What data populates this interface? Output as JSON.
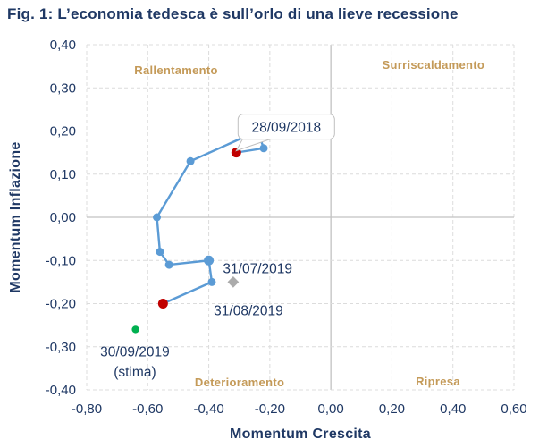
{
  "title": "Fig. 1: L’economia tedesca è sull’orlo di una lieve recessione",
  "style": {
    "navy": "#1F3864",
    "line_blue": "#5B9BD5",
    "red": "#C00000",
    "green": "#00B050",
    "diamond_gray": "#ABABAB",
    "gridline": "#DCDCDC",
    "axis_line": "#C2C2C2",
    "quadrant": "#C49A58",
    "callout_border": "#BFBFBF",
    "callout_fill": "#FFFFFF"
  },
  "chart_data": {
    "type": "scatter",
    "title": "Fig. 1: L’economia tedesca è sull’orlo di una lieve recessione",
    "xlabel": "Momentum Crescita",
    "ylabel": "Momentum Inflazione",
    "xlim": [
      -0.8,
      0.6
    ],
    "ylim": [
      -0.4,
      0.4
    ],
    "grid": "dashed",
    "x_ticks": [
      "-0,80",
      "-0,60",
      "-0,40",
      "-0,20",
      "0,00",
      "0,20",
      "0,40",
      "0,60"
    ],
    "x_tick_values": [
      -0.8,
      -0.6,
      -0.4,
      -0.2,
      0,
      0.2,
      0.4,
      0.6
    ],
    "y_ticks": [
      "0,40",
      "0,30",
      "0,20",
      "0,10",
      "0,00",
      "-0,10",
      "-0,20",
      "-0,30",
      "-0,40"
    ],
    "y_tick_values": [
      0.4,
      0.3,
      0.2,
      0.1,
      0,
      -0.1,
      -0.2,
      -0.3,
      -0.4
    ],
    "quadrant_labels": [
      {
        "id": "rallentamento",
        "text": "Rallentamento",
        "x": -0.507,
        "y": 0.34
      },
      {
        "id": "surriscaldamento",
        "text": "Surriscaldamento",
        "x": 0.336,
        "y": 0.352
      },
      {
        "id": "deterioramento",
        "text": "Deterioramento",
        "x": -0.299,
        "y": -0.383
      },
      {
        "id": "ripresa",
        "text": "Ripresa",
        "x": 0.351,
        "y": -0.381
      }
    ],
    "series": [
      {
        "name": "trajectory-monthly-path",
        "type": "line+markers",
        "color": "#5B9BD5",
        "points": [
          {
            "x": -0.31,
            "y": 0.15,
            "marker": "red",
            "size": 5.5,
            "label": "28/09/2018"
          },
          {
            "x": -0.22,
            "y": 0.16,
            "size": 4.5
          },
          {
            "x": -0.24,
            "y": 0.2,
            "size": 4.5
          },
          {
            "x": -0.46,
            "y": 0.13,
            "size": 4.5
          },
          {
            "x": -0.57,
            "y": 0.0,
            "size": 4.5
          },
          {
            "x": -0.56,
            "y": -0.08,
            "size": 4.5
          },
          {
            "x": -0.53,
            "y": -0.11,
            "size": 4.5
          },
          {
            "x": -0.4,
            "y": -0.1,
            "size": 5.5
          },
          {
            "x": -0.39,
            "y": -0.15,
            "size": 4.5
          },
          {
            "x": -0.55,
            "y": -0.2,
            "marker": "red",
            "size": 5.5,
            "label": "31/08/2019"
          }
        ]
      },
      {
        "name": "estimate-point",
        "type": "marker",
        "color": "#00B050",
        "points": [
          {
            "x": -0.64,
            "y": -0.26,
            "label": "30/09/2019 (stima)"
          }
        ]
      },
      {
        "name": "reference-diamond",
        "type": "diamond-marker",
        "color": "#ABABAB",
        "points": [
          {
            "x": -0.32,
            "y": -0.15
          }
        ]
      }
    ],
    "annotations": [
      {
        "id": "callout-28-09-2018",
        "text": "28/09/2018",
        "callout": true,
        "anchor_x": -0.31,
        "anchor_y": 0.15
      },
      {
        "id": "label-31-07-2019",
        "text": "31/07/2019",
        "x": -0.24,
        "y": -0.118
      },
      {
        "id": "label-31-08-2019",
        "text": "31/08/2019",
        "x": -0.27,
        "y": -0.216
      },
      {
        "id": "label-30-09-2019",
        "text": "30/09/2019",
        "x": -0.642,
        "y": -0.311
      },
      {
        "id": "label-stima",
        "text": "(stima)",
        "x": -0.642,
        "y": -0.357
      }
    ]
  }
}
